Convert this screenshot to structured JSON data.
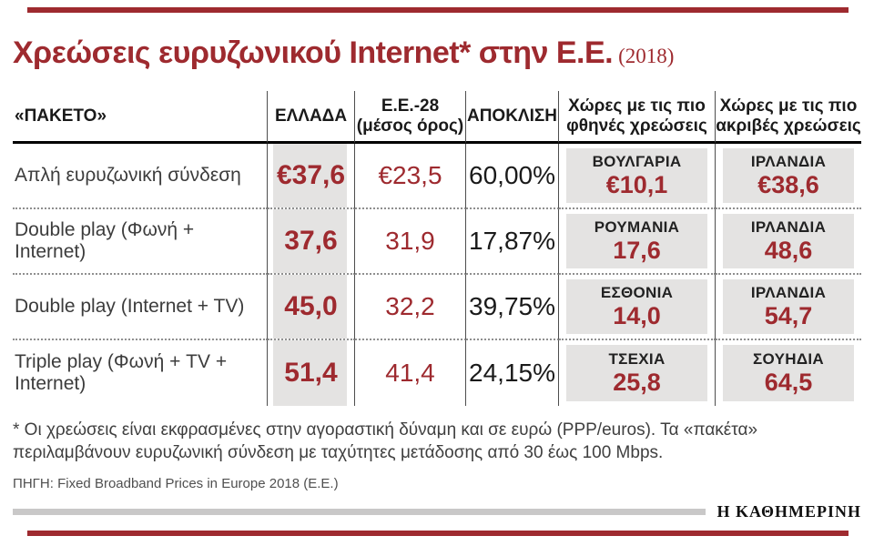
{
  "page": {
    "title": "Χρεώσεις ευρυζωνικού Internet* στην Ε.Ε.",
    "title_year": "(2018)",
    "accent_red": "#9e2a2f",
    "gray_box": "#e4e3e2"
  },
  "table": {
    "headers": {
      "package": "«ΠΑΚΕΤΟ»",
      "greece": "ΕΛΛΑΔΑ",
      "eu_line1": "Ε.Ε.-28",
      "eu_line2": "(μέσος όρος)",
      "deviation": "ΑΠΟΚΛΙΣΗ",
      "cheapest_line1": "Χώρες με τις πιο",
      "cheapest_line2": "φθηνές χρεώσεις",
      "expensive_line1": "Χώρες με τις πιο",
      "expensive_line2": "ακριβές χρεώσεις"
    },
    "rows": [
      {
        "package": "Απλή ευρυζωνική σύνδεση",
        "greece": "€37,6",
        "eu": "€23,5",
        "deviation": "60,00%",
        "cheapest_country": "ΒΟΥΛΓΑΡΙΑ",
        "cheapest_price": "€10,1",
        "expensive_country": "ΙΡΛΑΝΔΙΑ",
        "expensive_price": "€38,6"
      },
      {
        "package": "Double play (Φωνή + Internet)",
        "greece": "37,6",
        "eu": "31,9",
        "deviation": "17,87%",
        "cheapest_country": "ΡΟΥΜΑΝΙΑ",
        "cheapest_price": "17,6",
        "expensive_country": "ΙΡΛΑΝΔΙΑ",
        "expensive_price": "48,6"
      },
      {
        "package": "Double play (Internet + TV)",
        "greece": "45,0",
        "eu": "32,2",
        "deviation": "39,75%",
        "cheapest_country": "ΕΣΘΟΝΙΑ",
        "cheapest_price": "14,0",
        "expensive_country": "ΙΡΛΑΝΔΙΑ",
        "expensive_price": "54,7"
      },
      {
        "package": "Triple play (Φωνή + TV + Internet)",
        "greece": "51,4",
        "eu": "41,4",
        "deviation": "24,15%",
        "cheapest_country": "ΤΣΕΧΙΑ",
        "cheapest_price": "25,8",
        "expensive_country": "ΣΟΥΗΔΙΑ",
        "expensive_price": "64,5"
      }
    ]
  },
  "footnote": "* Οι χρεώσεις είναι εκφρασμένες στην αγοραστική δύναμη και σε ευρώ (PPP/euros). Τα «πακέτα» περιλαμβάνουν ευρυζωνική σύνδεση με ταχύτητες μετάδοσης από 30 έως 100 Mbps.",
  "source": "ΠΗΓΗ: Fixed Broadband Prices in Europe 2018 (Ε.Ε.)",
  "logo": "Η ΚΑΘΗΜΕΡΙΝΗ",
  "chart_data": {
    "type": "table",
    "title": "Χρεώσεις ευρυζωνικού Internet στην Ε.Ε. (2018)",
    "columns": [
      "«ΠΑΚΕΤΟ»",
      "ΕΛΛΑΔΑ",
      "Ε.Ε.-28 (μέσος όρος)",
      "ΑΠΟΚΛΙΣΗ",
      "Χώρες με τις πιο φθηνές χρεώσεις",
      "Χώρες με τις πιο ακριβές χρεώσεις"
    ],
    "unit": "PPP/euros",
    "rows": [
      {
        "package": "Απλή ευρυζωνική σύνδεση",
        "greece_eur": 37.6,
        "eu28_avg_eur": 23.5,
        "deviation_pct": 60.0,
        "cheapest_country": "ΒΟΥΛΓΑΡΙΑ",
        "cheapest_eur": 10.1,
        "most_expensive_country": "ΙΡΛΑΝΔΙΑ",
        "most_expensive_eur": 38.6
      },
      {
        "package": "Double play (Φωνή + Internet)",
        "greece_eur": 37.6,
        "eu28_avg_eur": 31.9,
        "deviation_pct": 17.87,
        "cheapest_country": "ΡΟΥΜΑΝΙΑ",
        "cheapest_eur": 17.6,
        "most_expensive_country": "ΙΡΛΑΝΔΙΑ",
        "most_expensive_eur": 48.6
      },
      {
        "package": "Double play (Internet + TV)",
        "greece_eur": 45.0,
        "eu28_avg_eur": 32.2,
        "deviation_pct": 39.75,
        "cheapest_country": "ΕΣΘΟΝΙΑ",
        "cheapest_eur": 14.0,
        "most_expensive_country": "ΙΡΛΑΝΔΙΑ",
        "most_expensive_eur": 54.7
      },
      {
        "package": "Triple play (Φωνή + TV + Internet)",
        "greece_eur": 51.4,
        "eu28_avg_eur": 41.4,
        "deviation_pct": 24.15,
        "cheapest_country": "ΤΣΕΧΙΑ",
        "cheapest_eur": 25.8,
        "most_expensive_country": "ΣΟΥΗΔΙΑ",
        "most_expensive_eur": 64.5
      }
    ]
  }
}
